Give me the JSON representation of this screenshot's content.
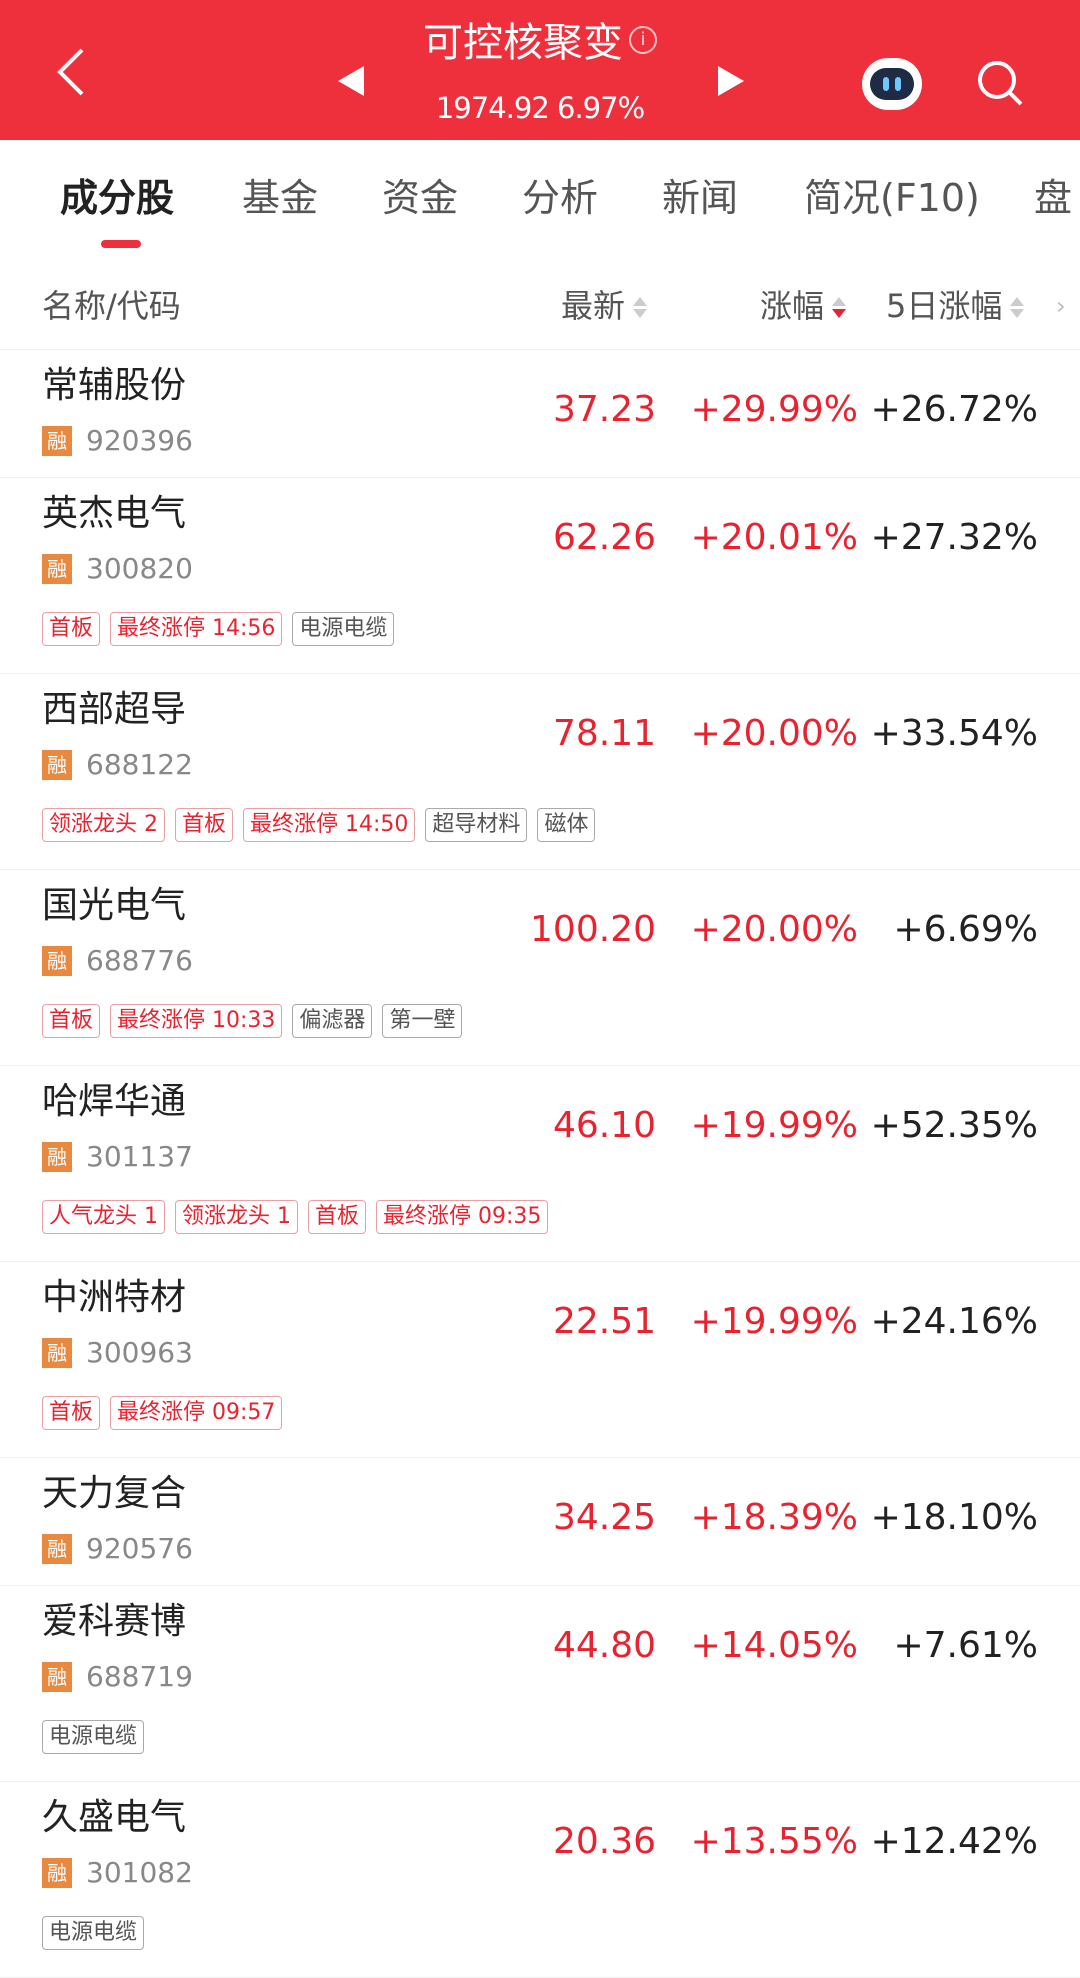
{
  "header": {
    "title": "可控核聚变",
    "info_icon": "i",
    "index_value": "1974.92",
    "index_change": "6.97%",
    "bg_color": "#ee2f3c"
  },
  "tabs": [
    "成分股",
    "基金",
    "资金",
    "分析",
    "新闻",
    "简况(F10)",
    "盘"
  ],
  "active_tab": 0,
  "columns": {
    "name": "名称/代码",
    "price": "最新",
    "change": "涨幅",
    "change5": "5日涨幅"
  },
  "margin_badge": "融",
  "rows": [
    {
      "name": "常辅股份",
      "code": "920396",
      "price": "37.23",
      "change": "+29.99%",
      "change5": "+26.72%",
      "tags": []
    },
    {
      "name": "英杰电气",
      "code": "300820",
      "price": "62.26",
      "change": "+20.01%",
      "change5": "+27.32%",
      "tags": [
        {
          "t": "首板",
          "red": true
        },
        {
          "t": "最终涨停 14:56",
          "red": true
        },
        {
          "t": "电源电缆",
          "red": false
        }
      ]
    },
    {
      "name": "西部超导",
      "code": "688122",
      "price": "78.11",
      "change": "+20.00%",
      "change5": "+33.54%",
      "tags": [
        {
          "t": "领涨龙头 2",
          "red": true
        },
        {
          "t": "首板",
          "red": true
        },
        {
          "t": "最终涨停 14:50",
          "red": true
        },
        {
          "t": "超导材料",
          "red": false
        },
        {
          "t": "磁体",
          "red": false
        }
      ]
    },
    {
      "name": "国光电气",
      "code": "688776",
      "price": "100.20",
      "change": "+20.00%",
      "change5": "+6.69%",
      "tags": [
        {
          "t": "首板",
          "red": true
        },
        {
          "t": "最终涨停 10:33",
          "red": true
        },
        {
          "t": "偏滤器",
          "red": false
        },
        {
          "t": "第一壁",
          "red": false
        }
      ]
    },
    {
      "name": "哈焊华通",
      "code": "301137",
      "price": "46.10",
      "change": "+19.99%",
      "change5": "+52.35%",
      "tags": [
        {
          "t": "人气龙头 1",
          "red": true
        },
        {
          "t": "领涨龙头 1",
          "red": true
        },
        {
          "t": "首板",
          "red": true
        },
        {
          "t": "最终涨停 09:35",
          "red": true
        }
      ]
    },
    {
      "name": "中洲特材",
      "code": "300963",
      "price": "22.51",
      "change": "+19.99%",
      "change5": "+24.16%",
      "tags": [
        {
          "t": "首板",
          "red": true
        },
        {
          "t": "最终涨停 09:57",
          "red": true
        }
      ]
    },
    {
      "name": "天力复合",
      "code": "920576",
      "price": "34.25",
      "change": "+18.39%",
      "change5": "+18.10%",
      "tags": []
    },
    {
      "name": "爱科赛博",
      "code": "688719",
      "price": "44.80",
      "change": "+14.05%",
      "change5": "+7.61%",
      "tags": [
        {
          "t": "电源电缆",
          "red": false
        }
      ]
    },
    {
      "name": "久盛电气",
      "code": "301082",
      "price": "20.36",
      "change": "+13.55%",
      "change5": "+12.42%",
      "tags": [
        {
          "t": "电源电缆",
          "red": false
        }
      ]
    }
  ]
}
